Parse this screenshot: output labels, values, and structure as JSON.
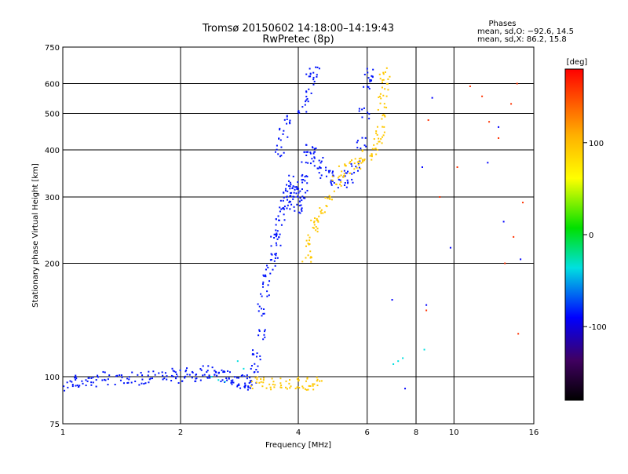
{
  "chart_data": {
    "type": "scatter",
    "title": "Tromsø 20150602 14:18:00–14:19:43",
    "subtitle": "RwPretec (8p)",
    "xlabel": "Frequency [MHz]",
    "ylabel": "Stationary phase Virtual Height [km]",
    "x_scale": "log",
    "y_scale": "log",
    "xlim": [
      1,
      16
    ],
    "ylim": [
      75,
      750
    ],
    "x_ticks": [
      1,
      2,
      4,
      6,
      8,
      10,
      16
    ],
    "y_ticks": [
      75,
      100,
      200,
      300,
      400,
      500,
      600,
      750
    ],
    "grid": true,
    "phases_box": {
      "title": "Phases",
      "line1": "mean, sd,O: −92.6, 14.5",
      "line2": "mean, sd,X:  86.2, 15.8"
    },
    "colorbar": {
      "label": "[deg]",
      "range": [
        -180,
        180
      ],
      "ticks": [
        100,
        0,
        -100
      ]
    },
    "series": [
      {
        "color_phase": -95,
        "points": [
          [
            1.0,
            95
          ],
          [
            1.05,
            97
          ],
          [
            1.1,
            96
          ],
          [
            1.15,
            98
          ],
          [
            1.2,
            97
          ],
          [
            1.3,
            99
          ],
          [
            1.4,
            98
          ],
          [
            1.5,
            100
          ],
          [
            1.6,
            99
          ],
          [
            1.7,
            100
          ],
          [
            1.8,
            99
          ],
          [
            1.9,
            101
          ],
          [
            2.0,
            100
          ],
          [
            2.1,
            102
          ],
          [
            2.2,
            101
          ],
          [
            2.3,
            103
          ],
          [
            2.4,
            102
          ],
          [
            2.5,
            102
          ],
          [
            2.6,
            100
          ],
          [
            2.7,
            99
          ],
          [
            2.8,
            98
          ],
          [
            2.9,
            97
          ],
          [
            3.0,
            96
          ],
          [
            3.05,
            95
          ],
          [
            3.1,
            105
          ],
          [
            3.15,
            115
          ],
          [
            3.2,
            130
          ],
          [
            3.25,
            150
          ],
          [
            3.3,
            170
          ],
          [
            3.35,
            185
          ],
          [
            3.4,
            200
          ],
          [
            3.45,
            215
          ],
          [
            3.5,
            230
          ],
          [
            3.55,
            245
          ],
          [
            3.6,
            260
          ],
          [
            3.65,
            275
          ],
          [
            3.7,
            290
          ],
          [
            3.75,
            300
          ],
          [
            3.8,
            320
          ],
          [
            3.85,
            330
          ],
          [
            3.9,
            310
          ],
          [
            3.95,
            290
          ],
          [
            4.0,
            280
          ],
          [
            4.05,
            300
          ],
          [
            4.1,
            320
          ],
          [
            4.15,
            340
          ],
          [
            4.2,
            380
          ],
          [
            4.3,
            400
          ],
          [
            4.4,
            390
          ],
          [
            4.5,
            370
          ],
          [
            4.6,
            350
          ],
          [
            4.8,
            340
          ],
          [
            5.0,
            330
          ],
          [
            5.2,
            330
          ],
          [
            5.4,
            340
          ],
          [
            5.6,
            360
          ],
          [
            5.8,
            420
          ],
          [
            5.9,
            500
          ],
          [
            6.0,
            600
          ],
          [
            6.05,
            640
          ],
          [
            3.6,
            400
          ],
          [
            3.65,
            440
          ],
          [
            3.7,
            480
          ],
          [
            4.1,
            520
          ],
          [
            4.2,
            560
          ],
          [
            4.3,
            620
          ],
          [
            4.4,
            650
          ]
        ]
      },
      {
        "color_phase": 95,
        "points": [
          [
            3.1,
            96
          ],
          [
            3.3,
            96
          ],
          [
            3.5,
            96
          ],
          [
            3.7,
            96
          ],
          [
            3.9,
            96
          ],
          [
            4.1,
            96
          ],
          [
            4.3,
            96
          ],
          [
            4.5,
            96
          ],
          [
            4.2,
            210
          ],
          [
            4.3,
            230
          ],
          [
            4.4,
            250
          ],
          [
            4.5,
            260
          ],
          [
            4.6,
            280
          ],
          [
            4.8,
            300
          ],
          [
            5.0,
            330
          ],
          [
            5.2,
            350
          ],
          [
            5.4,
            360
          ],
          [
            5.6,
            370
          ],
          [
            5.8,
            380
          ],
          [
            6.0,
            390
          ],
          [
            6.2,
            400
          ],
          [
            6.4,
            420
          ],
          [
            6.5,
            450
          ],
          [
            6.55,
            500
          ],
          [
            6.6,
            550
          ],
          [
            6.62,
            600
          ],
          [
            6.65,
            640
          ]
        ]
      },
      {
        "color_phase": -40,
        "points": [
          [
            2.4,
            100
          ],
          [
            2.5,
            98
          ],
          [
            2.6,
            97
          ],
          [
            2.8,
            110
          ],
          [
            2.9,
            105
          ],
          [
            7.0,
            108
          ],
          [
            7.2,
            110
          ],
          [
            7.4,
            112
          ],
          [
            8.4,
            118
          ]
        ]
      },
      {
        "color_phase": 160,
        "points": [
          [
            8.5,
            150
          ],
          [
            8.6,
            480
          ],
          [
            9.2,
            300
          ],
          [
            10.2,
            360
          ],
          [
            11.0,
            590
          ],
          [
            11.8,
            555
          ],
          [
            12.3,
            475
          ],
          [
            13.0,
            430
          ],
          [
            13.5,
            200
          ],
          [
            14.0,
            530
          ],
          [
            14.5,
            600
          ],
          [
            15.0,
            290
          ],
          [
            14.6,
            130
          ],
          [
            14.2,
            235
          ]
        ]
      },
      {
        "color_phase": -100,
        "points": [
          [
            6.95,
            160
          ],
          [
            7.5,
            93
          ],
          [
            8.3,
            360
          ],
          [
            8.5,
            155
          ],
          [
            8.8,
            550
          ],
          [
            12.2,
            370
          ],
          [
            13.0,
            460
          ],
          [
            13.4,
            258
          ],
          [
            14.8,
            205
          ],
          [
            9.8,
            220
          ]
        ]
      }
    ]
  }
}
